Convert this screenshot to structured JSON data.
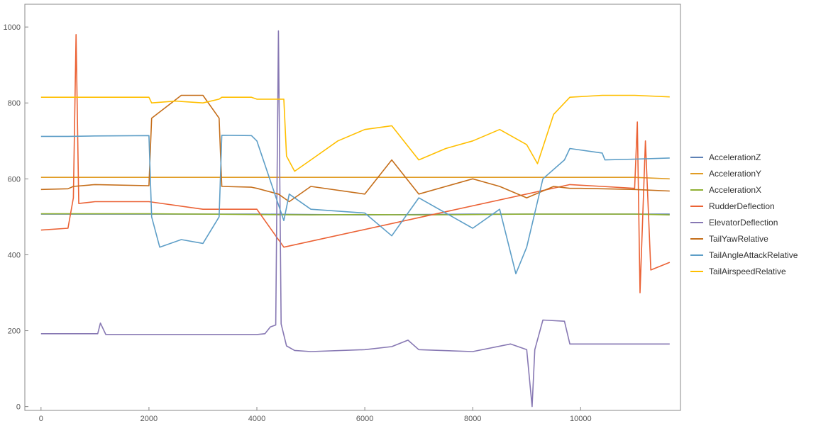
{
  "chart_data": {
    "type": "line",
    "title": "",
    "xlabel": "",
    "ylabel": "",
    "xlim": [
      -300,
      11850
    ],
    "ylim": [
      -10,
      1060
    ],
    "x_ticks": [
      0,
      2000,
      4000,
      6000,
      8000,
      10000
    ],
    "y_ticks": [
      0,
      200,
      400,
      600,
      800,
      1000
    ],
    "x_tick_labels": [
      "0",
      "2000",
      "4000",
      "6000",
      "8000",
      "10000"
    ],
    "y_tick_labels": [
      "0",
      "200",
      "400",
      "600",
      "800",
      "1000"
    ],
    "grid": false,
    "frame": true,
    "legend_position": "right",
    "series": [
      {
        "name": "AccelerationZ",
        "color": "#5E81B5",
        "x": [
          0,
          2000,
          4000,
          6000,
          8000,
          10000,
          11650
        ],
        "y": [
          507,
          507,
          507,
          505,
          507,
          507,
          507
        ]
      },
      {
        "name": "AccelerationY",
        "color": "#E19C24",
        "x": [
          0,
          1000,
          2000,
          3000,
          4000,
          5000,
          6000,
          7000,
          8000,
          9000,
          10000,
          11000,
          11650
        ],
        "y": [
          604,
          604,
          604,
          604,
          604,
          604,
          604,
          604,
          604,
          604,
          604,
          604,
          600
        ]
      },
      {
        "name": "AccelerationX",
        "color": "#8FB032",
        "x": [
          0,
          1000,
          2000,
          3000,
          4000,
          5000,
          6000,
          7000,
          8000,
          9000,
          10000,
          11000,
          11650
        ],
        "y": [
          508,
          508,
          508,
          507,
          506,
          505,
          506,
          505,
          506,
          507,
          507,
          507,
          505
        ]
      },
      {
        "name": "RudderDeflection",
        "color": "#EB6235",
        "x": [
          0,
          500,
          600,
          650,
          700,
          1000,
          2000,
          3000,
          3350,
          4000,
          4500,
          9800,
          10400,
          11000,
          11050,
          11100,
          11200,
          11300,
          11650
        ],
        "y": [
          465,
          470,
          550,
          980,
          535,
          540,
          540,
          520,
          520,
          520,
          420,
          585,
          580,
          575,
          750,
          300,
          700,
          360,
          380
        ]
      },
      {
        "name": "ElevatorDeflection",
        "color": "#8778B3",
        "x": [
          0,
          1000,
          1050,
          1100,
          1200,
          2000,
          3000,
          4000,
          4150,
          4250,
          4350,
          4400,
          4450,
          4550,
          4700,
          5000,
          6000,
          6500,
          6800,
          7000,
          8000,
          8700,
          9000,
          9100,
          9150,
          9300,
          9700,
          9800,
          10000,
          11650
        ],
        "y": [
          192,
          192,
          192,
          220,
          190,
          190,
          190,
          190,
          192,
          210,
          215,
          990,
          218,
          160,
          148,
          145,
          150,
          158,
          175,
          150,
          145,
          165,
          150,
          0,
          150,
          228,
          225,
          165,
          165,
          165
        ]
      },
      {
        "name": "TailYawRelative",
        "color": "#C56E1A",
        "x": [
          0,
          500,
          600,
          1000,
          2000,
          2050,
          2600,
          3000,
          3300,
          3350,
          3900,
          4000,
          4400,
          4600,
          5000,
          6000,
          6500,
          7000,
          8000,
          8500,
          9000,
          9500,
          9800,
          10000,
          11000,
          11650
        ],
        "y": [
          572,
          574,
          580,
          585,
          582,
          760,
          820,
          820,
          760,
          580,
          578,
          575,
          560,
          540,
          580,
          560,
          650,
          560,
          600,
          580,
          550,
          580,
          575,
          575,
          572,
          568
        ]
      },
      {
        "name": "TailAngleAttackRelative",
        "color": "#5D9EC7",
        "x": [
          0,
          500,
          1000,
          2000,
          2050,
          2200,
          2600,
          3000,
          3300,
          3350,
          3900,
          4000,
          4500,
          4600,
          5000,
          6000,
          6500,
          7000,
          8000,
          8500,
          8800,
          9000,
          9300,
          9700,
          9800,
          10400,
          10450,
          11000,
          11650
        ],
        "y": [
          712,
          712,
          713,
          714,
          500,
          420,
          440,
          430,
          500,
          715,
          714,
          700,
          490,
          560,
          520,
          510,
          450,
          550,
          470,
          520,
          350,
          420,
          600,
          650,
          680,
          668,
          650,
          652,
          655
        ]
      },
      {
        "name": "TailAirspeedRelative",
        "color": "#FFBF00",
        "x": [
          0,
          500,
          1000,
          2000,
          2050,
          2500,
          3000,
          3300,
          3350,
          3900,
          4000,
          4500,
          4550,
          4700,
          5000,
          5500,
          6000,
          6500,
          7000,
          7500,
          8000,
          8500,
          9000,
          9200,
          9500,
          9800,
          10400,
          11000,
          11650
        ],
        "y": [
          815,
          815,
          815,
          815,
          800,
          805,
          800,
          810,
          815,
          815,
          810,
          810,
          660,
          620,
          650,
          700,
          730,
          740,
          650,
          680,
          700,
          730,
          690,
          640,
          770,
          815,
          820,
          820,
          816
        ]
      }
    ]
  }
}
